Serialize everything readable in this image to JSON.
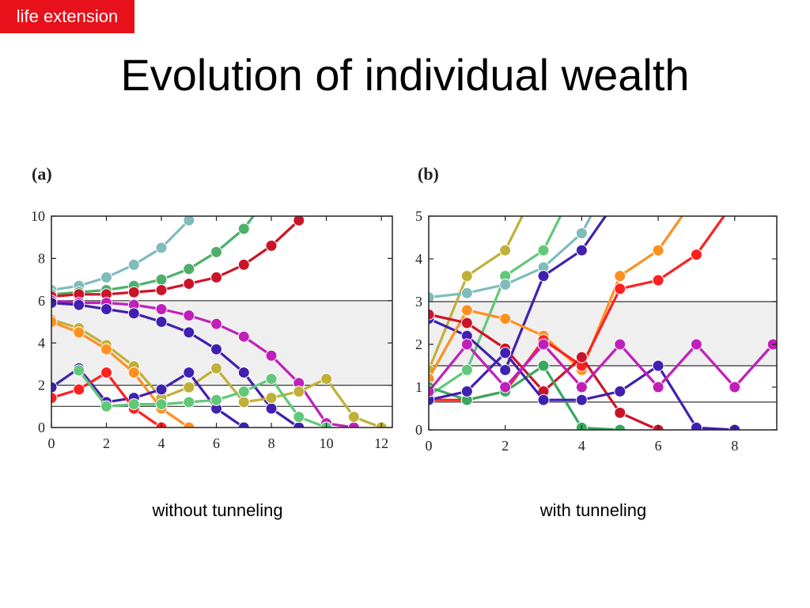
{
  "slide": {
    "tag": "life extension",
    "title": "Evolution of individual wealth",
    "caption_a": "without tunneling",
    "caption_b": "with tunneling"
  },
  "chart_data": [
    {
      "type": "line",
      "panel_label": "(a)",
      "xlim": [
        0,
        12.4
      ],
      "ylim": [
        0,
        10
      ],
      "x_ticks": [
        0,
        2,
        4,
        6,
        8,
        10,
        12
      ],
      "y_ticks": [
        0,
        2,
        4,
        6,
        8,
        10
      ],
      "bands": [
        [
          2,
          6
        ]
      ],
      "hlines": [
        6,
        2,
        1
      ],
      "series": [
        {
          "color": "#7fbcbc",
          "points": [
            [
              0,
              6.5
            ],
            [
              1,
              6.7
            ],
            [
              2,
              7.1
            ],
            [
              3,
              7.7
            ],
            [
              4,
              8.5
            ],
            [
              5,
              9.8
            ]
          ]
        },
        {
          "color": "#4db06a",
          "points": [
            [
              0,
              6.3
            ],
            [
              1,
              6.4
            ],
            [
              2,
              6.5
            ],
            [
              3,
              6.7
            ],
            [
              4,
              7.0
            ],
            [
              5,
              7.5
            ],
            [
              6,
              8.3
            ],
            [
              7,
              9.4
            ],
            [
              7.4,
              10.1
            ]
          ]
        },
        {
          "color": "#cc1428",
          "points": [
            [
              0,
              6.2
            ],
            [
              1,
              6.3
            ],
            [
              2,
              6.3
            ],
            [
              3,
              6.4
            ],
            [
              4,
              6.5
            ],
            [
              5,
              6.8
            ],
            [
              6,
              7.1
            ],
            [
              7,
              7.7
            ],
            [
              8,
              8.6
            ],
            [
              9,
              9.8
            ]
          ]
        },
        {
          "color": "#c020b8",
          "points": [
            [
              0,
              6.0
            ],
            [
              1,
              5.9
            ],
            [
              2,
              5.9
            ],
            [
              3,
              5.8
            ],
            [
              4,
              5.6
            ],
            [
              5,
              5.3
            ],
            [
              6,
              4.9
            ],
            [
              7,
              4.3
            ],
            [
              8,
              3.4
            ],
            [
              9,
              2.1
            ],
            [
              10,
              0.2
            ],
            [
              11,
              0
            ]
          ]
        },
        {
          "color": "#4020b0",
          "points": [
            [
              0,
              5.9
            ],
            [
              1,
              5.8
            ],
            [
              2,
              5.6
            ],
            [
              3,
              5.4
            ],
            [
              4,
              5.0
            ],
            [
              5,
              4.5
            ],
            [
              6,
              3.7
            ],
            [
              7,
              2.6
            ],
            [
              8,
              0.9
            ],
            [
              9,
              0
            ]
          ]
        },
        {
          "color": "#c0b038",
          "points": [
            [
              0,
              5.1
            ],
            [
              1,
              4.7
            ],
            [
              2,
              3.9
            ],
            [
              3,
              2.9
            ],
            [
              4,
              1.4
            ],
            [
              5,
              1.9
            ],
            [
              6,
              2.8
            ],
            [
              7,
              1.2
            ],
            [
              8,
              1.4
            ],
            [
              9,
              1.7
            ],
            [
              10,
              2.3
            ],
            [
              11,
              0.5
            ],
            [
              12,
              0
            ]
          ]
        },
        {
          "color": "#ff9020",
          "points": [
            [
              0,
              5.0
            ],
            [
              1,
              4.5
            ],
            [
              2,
              3.7
            ],
            [
              3,
              2.6
            ],
            [
              4,
              0.9
            ],
            [
              5,
              0
            ]
          ]
        },
        {
          "color": "#4020b0",
          "points": [
            [
              0,
              1.9
            ],
            [
              1,
              2.8
            ],
            [
              2,
              1.2
            ],
            [
              3,
              1.4
            ],
            [
              4,
              1.8
            ],
            [
              5,
              2.6
            ],
            [
              6,
              0.9
            ],
            [
              7,
              0
            ]
          ]
        },
        {
          "color": "#ff2020",
          "points": [
            [
              0,
              1.4
            ],
            [
              1,
              1.8
            ],
            [
              2,
              2.6
            ],
            [
              3,
              0.9
            ],
            [
              4,
              0
            ]
          ]
        },
        {
          "color": "#60c878",
          "points": [
            [
              1,
              2.7
            ],
            [
              2,
              1.0
            ],
            [
              3,
              1.1
            ],
            [
              4,
              1.1
            ],
            [
              5,
              1.2
            ],
            [
              6,
              1.3
            ],
            [
              7,
              1.7
            ],
            [
              8,
              2.3
            ],
            [
              9,
              0.5
            ],
            [
              10,
              0
            ]
          ]
        }
      ]
    },
    {
      "type": "line",
      "panel_label": "(b)",
      "xlim": [
        0,
        9.1
      ],
      "ylim": [
        0,
        5
      ],
      "x_ticks": [
        0,
        2,
        4,
        6,
        8
      ],
      "y_ticks": [
        0,
        1,
        2,
        3,
        4,
        5
      ],
      "bands": [
        [
          1.5,
          3
        ]
      ],
      "hlines": [
        3,
        1.5,
        0.65
      ],
      "series": [
        {
          "color": "#c0b038",
          "points": [
            [
              0,
              1.4
            ],
            [
              1,
              3.6
            ],
            [
              2,
              4.2
            ],
            [
              2.5,
              5.1
            ]
          ]
        },
        {
          "color": "#60c878",
          "points": [
            [
              0,
              0.8
            ],
            [
              1,
              1.4
            ],
            [
              2,
              3.6
            ],
            [
              3,
              4.2
            ],
            [
              3.5,
              5.1
            ]
          ]
        },
        {
          "color": "#7fbcbc",
          "points": [
            [
              0,
              3.1
            ],
            [
              1,
              3.2
            ],
            [
              2,
              3.4
            ],
            [
              3,
              3.8
            ],
            [
              4,
              4.6
            ],
            [
              4.3,
              5.1
            ]
          ]
        },
        {
          "color": "#4020b0",
          "points": [
            [
              0,
              2.6
            ],
            [
              1,
              2.2
            ],
            [
              2,
              1.4
            ],
            [
              3,
              3.6
            ],
            [
              4,
              4.2
            ],
            [
              4.7,
              5.1
            ]
          ]
        },
        {
          "color": "#ff9020",
          "points": [
            [
              0,
              1.2
            ],
            [
              1,
              2.8
            ],
            [
              2,
              2.6
            ],
            [
              3,
              2.2
            ],
            [
              4,
              1.4
            ],
            [
              5,
              3.6
            ],
            [
              6,
              4.2
            ],
            [
              6.7,
              5.1
            ]
          ]
        },
        {
          "color": "#ff2020",
          "points": [
            [
              0,
              0.7
            ],
            [
              1,
              0.7
            ],
            [
              2,
              0.9
            ],
            [
              3,
              2.1
            ],
            [
              4,
              1.5
            ],
            [
              5,
              3.3
            ],
            [
              6,
              3.5
            ],
            [
              7,
              4.1
            ],
            [
              7.8,
              5.1
            ]
          ]
        },
        {
          "color": "#cc1428",
          "points": [
            [
              0,
              2.7
            ],
            [
              1,
              2.5
            ],
            [
              2,
              1.9
            ],
            [
              3,
              0.9
            ],
            [
              4,
              1.7
            ],
            [
              5,
              0.4
            ],
            [
              6,
              0
            ]
          ]
        },
        {
          "color": "#3aa860",
          "points": [
            [
              0,
              1.0
            ],
            [
              1,
              0.7
            ],
            [
              2,
              0.9
            ],
            [
              3,
              1.5
            ],
            [
              4,
              0.05
            ],
            [
              5,
              0
            ]
          ]
        },
        {
          "color": "#4020b0",
          "points": [
            [
              0,
              0.7
            ],
            [
              1,
              0.9
            ],
            [
              2,
              1.8
            ],
            [
              3,
              0.7
            ],
            [
              4,
              0.7
            ],
            [
              5,
              0.9
            ],
            [
              6,
              1.5
            ],
            [
              7,
              0.05
            ],
            [
              8,
              0
            ]
          ]
        },
        {
          "color": "#c020b8",
          "points": [
            [
              0,
              0.9
            ],
            [
              1,
              2.0
            ],
            [
              2,
              1.0
            ],
            [
              3,
              2.0
            ],
            [
              4,
              1.0
            ],
            [
              5,
              2.0
            ],
            [
              6,
              1.0
            ],
            [
              7,
              2.0
            ],
            [
              8,
              1.0
            ],
            [
              9,
              2.0
            ]
          ]
        }
      ]
    }
  ]
}
